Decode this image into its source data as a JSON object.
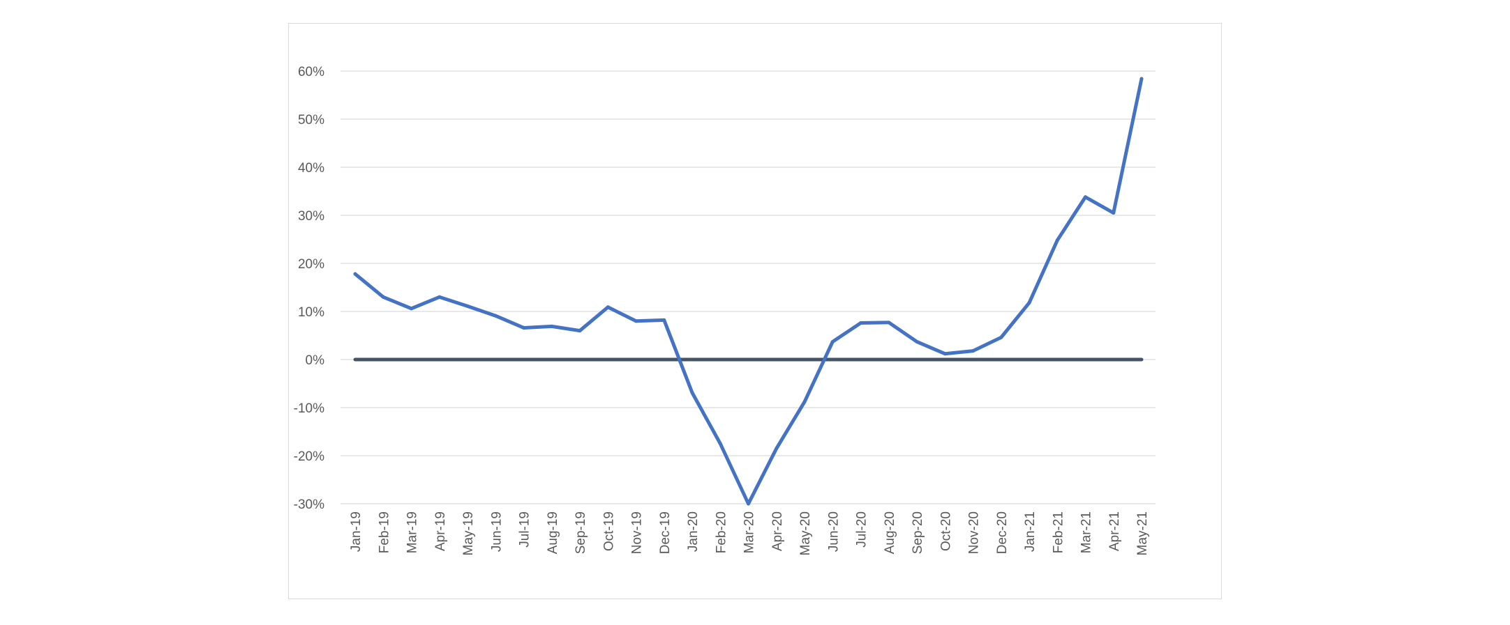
{
  "chart_data": {
    "type": "line",
    "title": "",
    "xlabel": "",
    "ylabel": "",
    "categories": [
      "Jan-19",
      "Feb-19",
      "Mar-19",
      "Apr-19",
      "May-19",
      "Jun-19",
      "Jul-19",
      "Aug-19",
      "Sep-19",
      "Oct-19",
      "Nov-19",
      "Dec-19",
      "Jan-20",
      "Feb-20",
      "Mar-20",
      "Apr-20",
      "May-20",
      "Jun-20",
      "Jul-20",
      "Aug-20",
      "Sep-20",
      "Oct-20",
      "Nov-20",
      "Dec-20",
      "Jan-21",
      "Feb-21",
      "Mar-21",
      "Apr-21",
      "May-21"
    ],
    "series": [
      {
        "values": [
          17.8,
          13.0,
          10.6,
          13.0,
          11.1,
          9.1,
          6.6,
          6.9,
          6.0,
          10.9,
          8.0,
          8.2,
          -6.9,
          -17.5,
          -30.0,
          -18.5,
          -8.8,
          3.7,
          7.6,
          7.7,
          3.7,
          1.2,
          1.8,
          4.6,
          11.8,
          24.8,
          33.8,
          30.5,
          58.4
        ],
        "color": "#4472C4"
      }
    ],
    "reference_line": {
      "value": 0,
      "color": "#44546A"
    },
    "ylim": [
      -30,
      60
    ],
    "yticks": [
      -30,
      -20,
      -10,
      0,
      10,
      20,
      30,
      40,
      50,
      60
    ],
    "ytick_labels": [
      "-30%",
      "-20%",
      "-10%",
      "0%",
      "10%",
      "20%",
      "30%",
      "40%",
      "50%",
      "60%"
    ],
    "grid": true,
    "grid_color": "#d9d9d9",
    "legend": "none"
  }
}
